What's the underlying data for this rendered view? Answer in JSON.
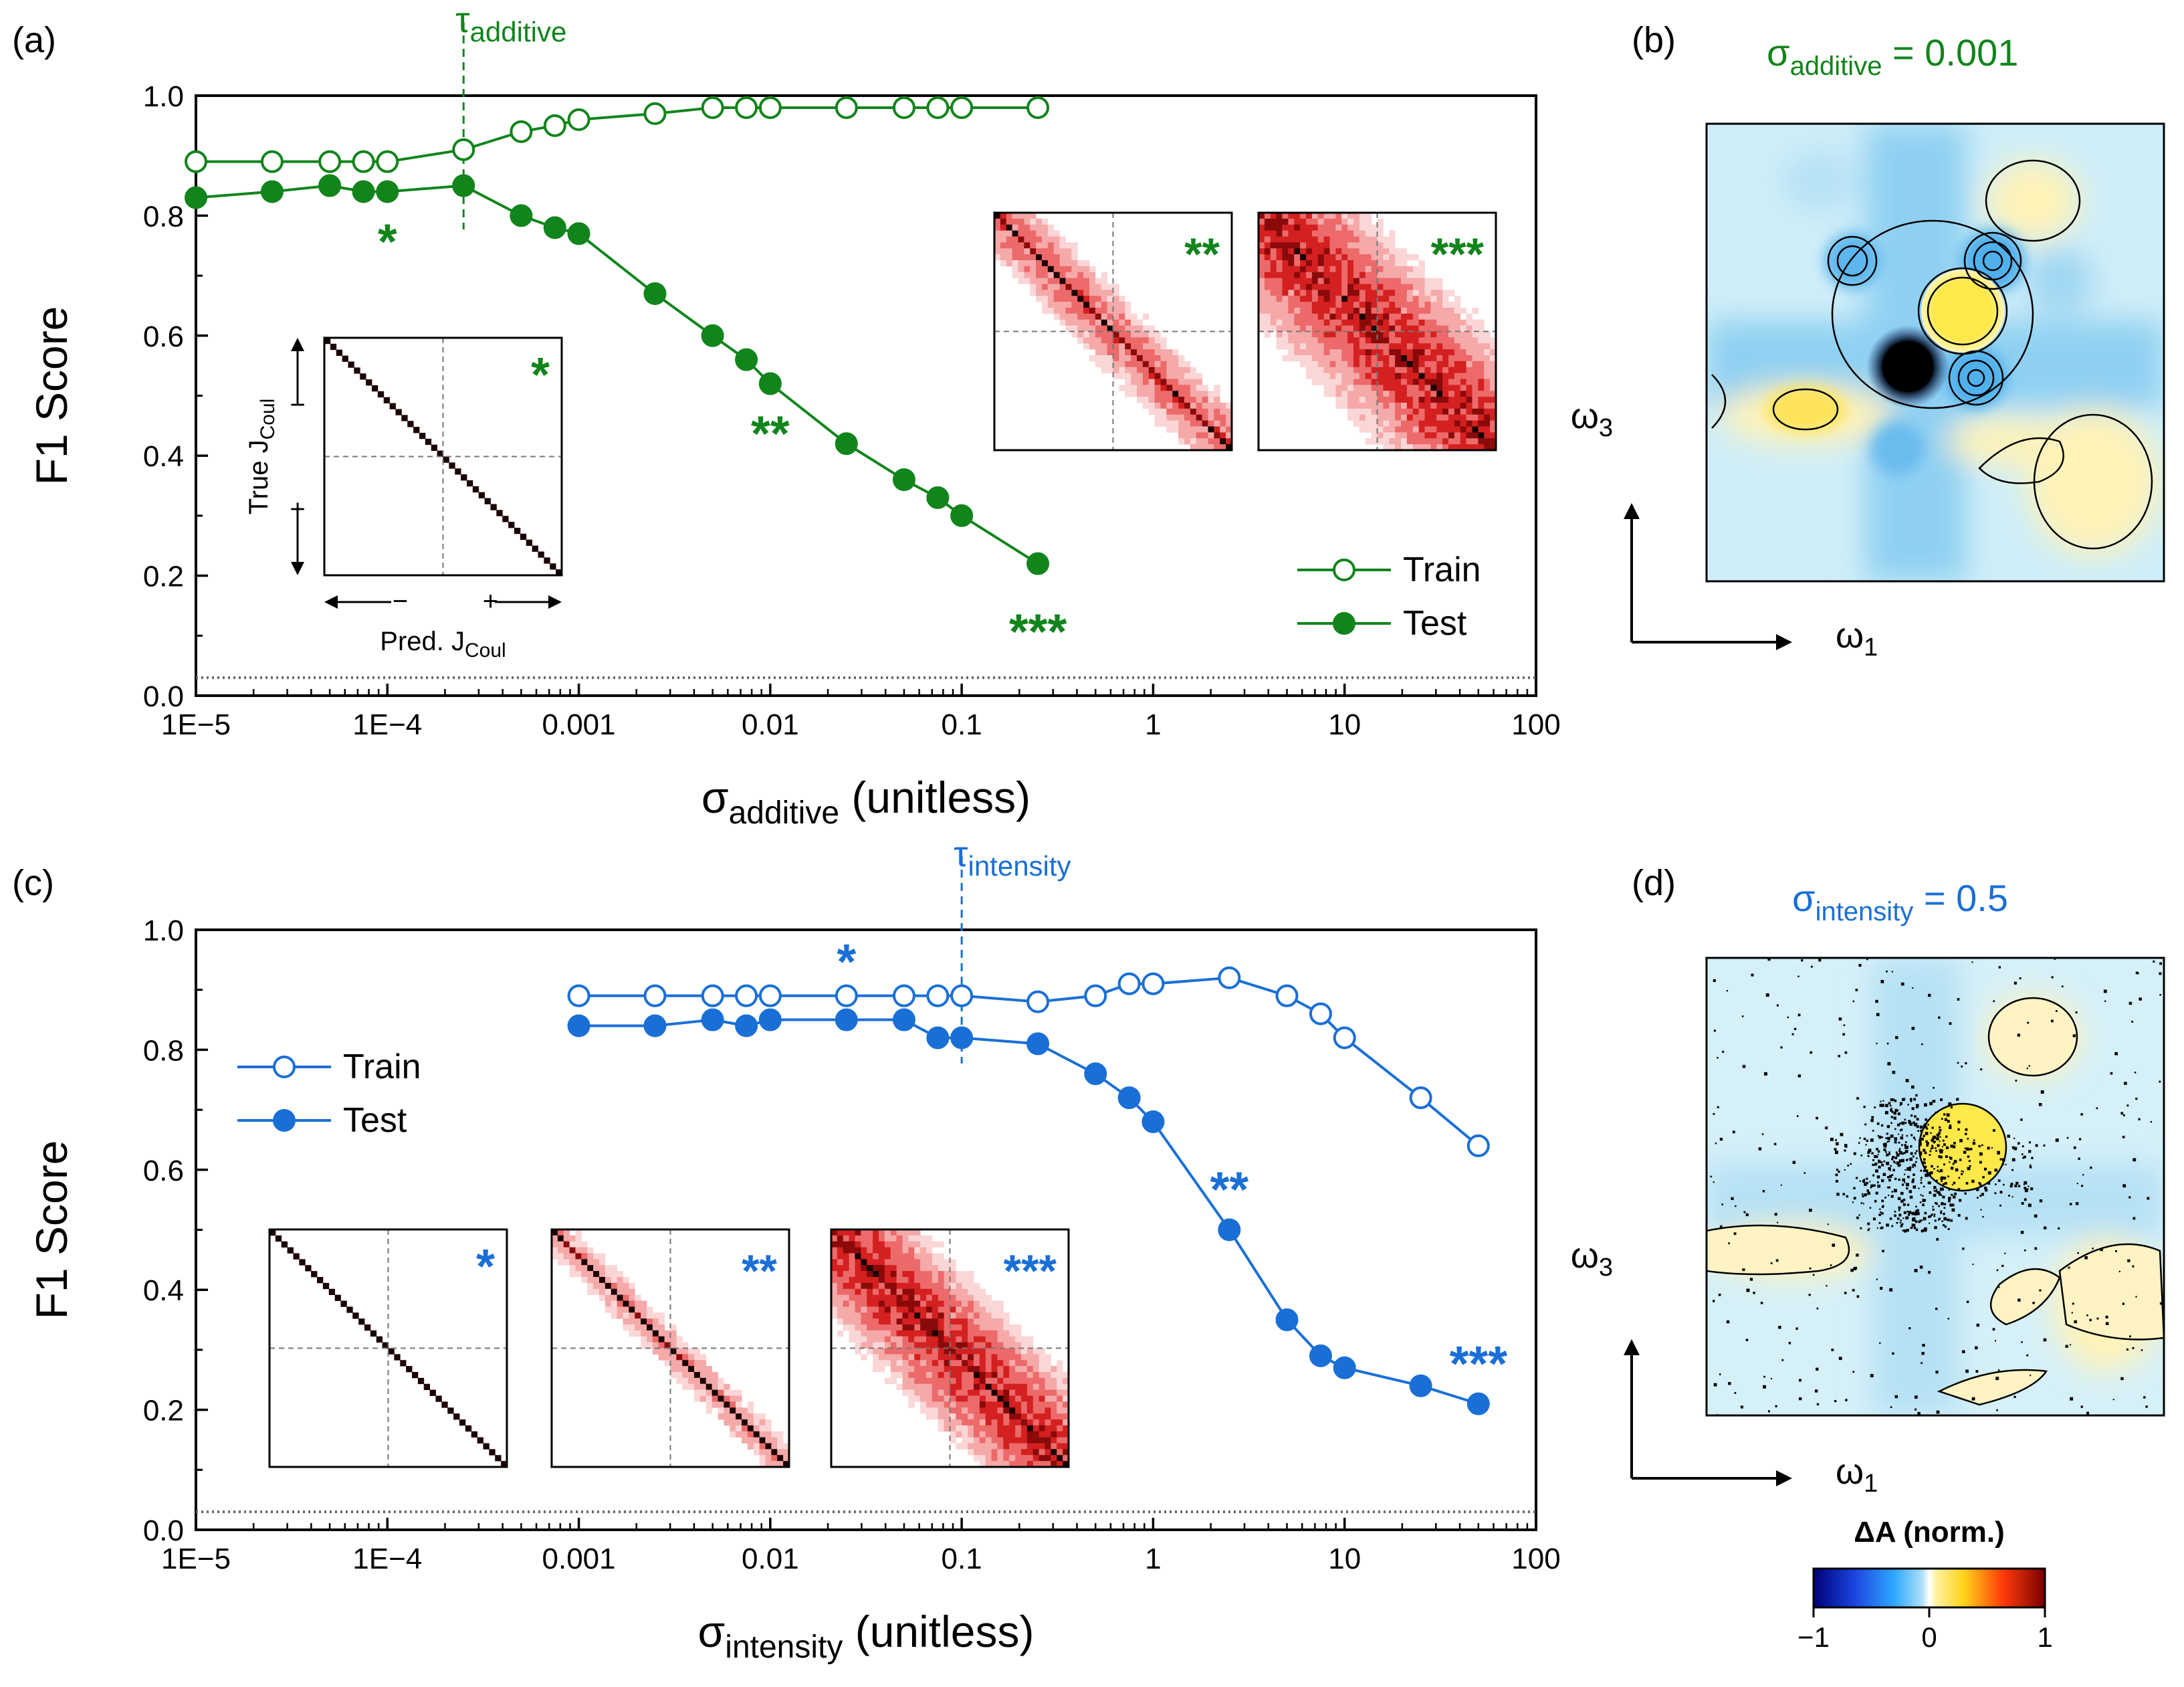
{
  "colors": {
    "green": "#12841c",
    "blue": "#1a6fd6",
    "axis": "#000000",
    "ref": "#666666"
  },
  "panels": {
    "a": {
      "tag": "(a)"
    },
    "b": {
      "tag": "(b)",
      "title_sym": "σ",
      "title_sub": "additive",
      "title_val": " = 0.001",
      "ylabel": "ω",
      "ylabel_sub": "3",
      "xlabel": "ω",
      "xlabel_sub": "1"
    },
    "c": {
      "tag": "(c)"
    },
    "d": {
      "tag": "(d)",
      "title_sym": "σ",
      "title_sub": "intensity",
      "title_val": " = 0.5",
      "ylabel": "ω",
      "ylabel_sub": "3",
      "xlabel": "ω",
      "xlabel_sub": "1"
    }
  },
  "colorbar": {
    "title": "ΔA (norm.)",
    "ticks": [
      "−1",
      "0",
      "1"
    ]
  },
  "inset_labels": {
    "true_label": "True J",
    "true_sub": "Coul",
    "pred_label": "Pred. J",
    "pred_sub": "Coul",
    "minus": "−",
    "plus": "+"
  },
  "chart_data": [
    {
      "id": "a",
      "type": "line",
      "xscale": "log",
      "xlim": [
        1e-05,
        100
      ],
      "ylim": [
        0.0,
        1.0
      ],
      "xticks": [
        "1E−5",
        "1E−4",
        "0.001",
        "0.01",
        "0.1",
        "1",
        "10",
        "100"
      ],
      "yticks": [
        "0.0",
        "0.2",
        "0.4",
        "0.6",
        "0.8",
        "1.0"
      ],
      "xlabel_sym": "σ",
      "xlabel_sub": "additive",
      "xlabel_rest": " (unitless)",
      "ylabel": "F1 Score",
      "legend_position": "bottom-right",
      "threshold": {
        "x": 0.00025,
        "label_sym": "τ",
        "label_sub": "additive"
      },
      "baseline": 0.03,
      "series": [
        {
          "name": "Train",
          "marker": "open",
          "x": [
            1e-05,
            2.5e-05,
            5e-05,
            7.5e-05,
            0.0001,
            0.00025,
            0.0005,
            0.00075,
            0.001,
            0.0025,
            0.005,
            0.0075,
            0.01,
            0.025,
            0.05,
            0.075,
            0.1,
            0.25
          ],
          "values": [
            0.89,
            0.89,
            0.89,
            0.89,
            0.89,
            0.91,
            0.94,
            0.95,
            0.96,
            0.97,
            0.98,
            0.98,
            0.98,
            0.98,
            0.98,
            0.98,
            0.98,
            0.98
          ]
        },
        {
          "name": "Test",
          "marker": "filled",
          "x": [
            1e-05,
            2.5e-05,
            5e-05,
            7.5e-05,
            0.0001,
            0.00025,
            0.0005,
            0.00075,
            0.001,
            0.0025,
            0.005,
            0.0075,
            0.01,
            0.025,
            0.05,
            0.075,
            0.1,
            0.25
          ],
          "values": [
            0.83,
            0.84,
            0.85,
            0.84,
            0.84,
            0.85,
            0.8,
            0.78,
            0.77,
            0.67,
            0.6,
            0.56,
            0.52,
            0.42,
            0.36,
            0.33,
            0.3,
            0.22
          ]
        }
      ],
      "annotations": [
        {
          "text": "*",
          "x": 0.0001,
          "y": 0.76
        },
        {
          "text": "**",
          "x": 0.01,
          "y": 0.44
        },
        {
          "text": "***",
          "x": 0.25,
          "y": 0.11
        }
      ],
      "insets": [
        {
          "label": "*",
          "spread": 0.01,
          "axes_labels": true
        },
        {
          "label": "**",
          "spread": 0.1,
          "axes_labels": false
        },
        {
          "label": "***",
          "spread": 0.22,
          "axes_labels": false
        }
      ]
    },
    {
      "id": "c",
      "type": "line",
      "xscale": "log",
      "xlim": [
        1e-05,
        100
      ],
      "ylim": [
        0.0,
        1.0
      ],
      "xticks": [
        "1E−5",
        "1E−4",
        "0.001",
        "0.01",
        "0.1",
        "1",
        "10",
        "100"
      ],
      "yticks": [
        "0.0",
        "0.2",
        "0.4",
        "0.6",
        "0.8",
        "1.0"
      ],
      "xlabel_sym": "σ",
      "xlabel_sub": "intensity",
      "xlabel_rest": " (unitless)",
      "ylabel": "F1 Score",
      "legend_position": "top-left",
      "threshold": {
        "x": 0.1,
        "label_sym": "τ",
        "label_sub": "intensity"
      },
      "baseline": 0.03,
      "series": [
        {
          "name": "Train",
          "marker": "open",
          "x": [
            0.001,
            0.0025,
            0.005,
            0.0075,
            0.01,
            0.025,
            0.05,
            0.075,
            0.1,
            0.25,
            0.5,
            0.75,
            1,
            2.5,
            5,
            7.5,
            10,
            25,
            50
          ],
          "values": [
            0.89,
            0.89,
            0.89,
            0.89,
            0.89,
            0.89,
            0.89,
            0.89,
            0.89,
            0.88,
            0.89,
            0.91,
            0.91,
            0.92,
            0.89,
            0.86,
            0.82,
            0.72,
            0.64
          ]
        },
        {
          "name": "Test",
          "marker": "filled",
          "x": [
            0.001,
            0.0025,
            0.005,
            0.0075,
            0.01,
            0.025,
            0.05,
            0.075,
            0.1,
            0.25,
            0.5,
            0.75,
            1,
            2.5,
            5,
            7.5,
            10,
            25,
            50
          ],
          "values": [
            0.84,
            0.84,
            0.85,
            0.84,
            0.85,
            0.85,
            0.85,
            0.82,
            0.82,
            0.81,
            0.76,
            0.72,
            0.68,
            0.5,
            0.35,
            0.29,
            0.27,
            0.24,
            0.21
          ]
        }
      ],
      "annotations": [
        {
          "text": "*",
          "x": 0.025,
          "y": 0.95
        },
        {
          "text": "**",
          "x": 2.5,
          "y": 0.57
        },
        {
          "text": "***",
          "x": 50,
          "y": 0.28
        }
      ],
      "insets": [
        {
          "label": "*",
          "spread": 0.01,
          "axes_labels": false
        },
        {
          "label": "**",
          "spread": 0.06,
          "axes_labels": false
        },
        {
          "label": "***",
          "spread": 0.18,
          "axes_labels": false
        }
      ]
    }
  ]
}
